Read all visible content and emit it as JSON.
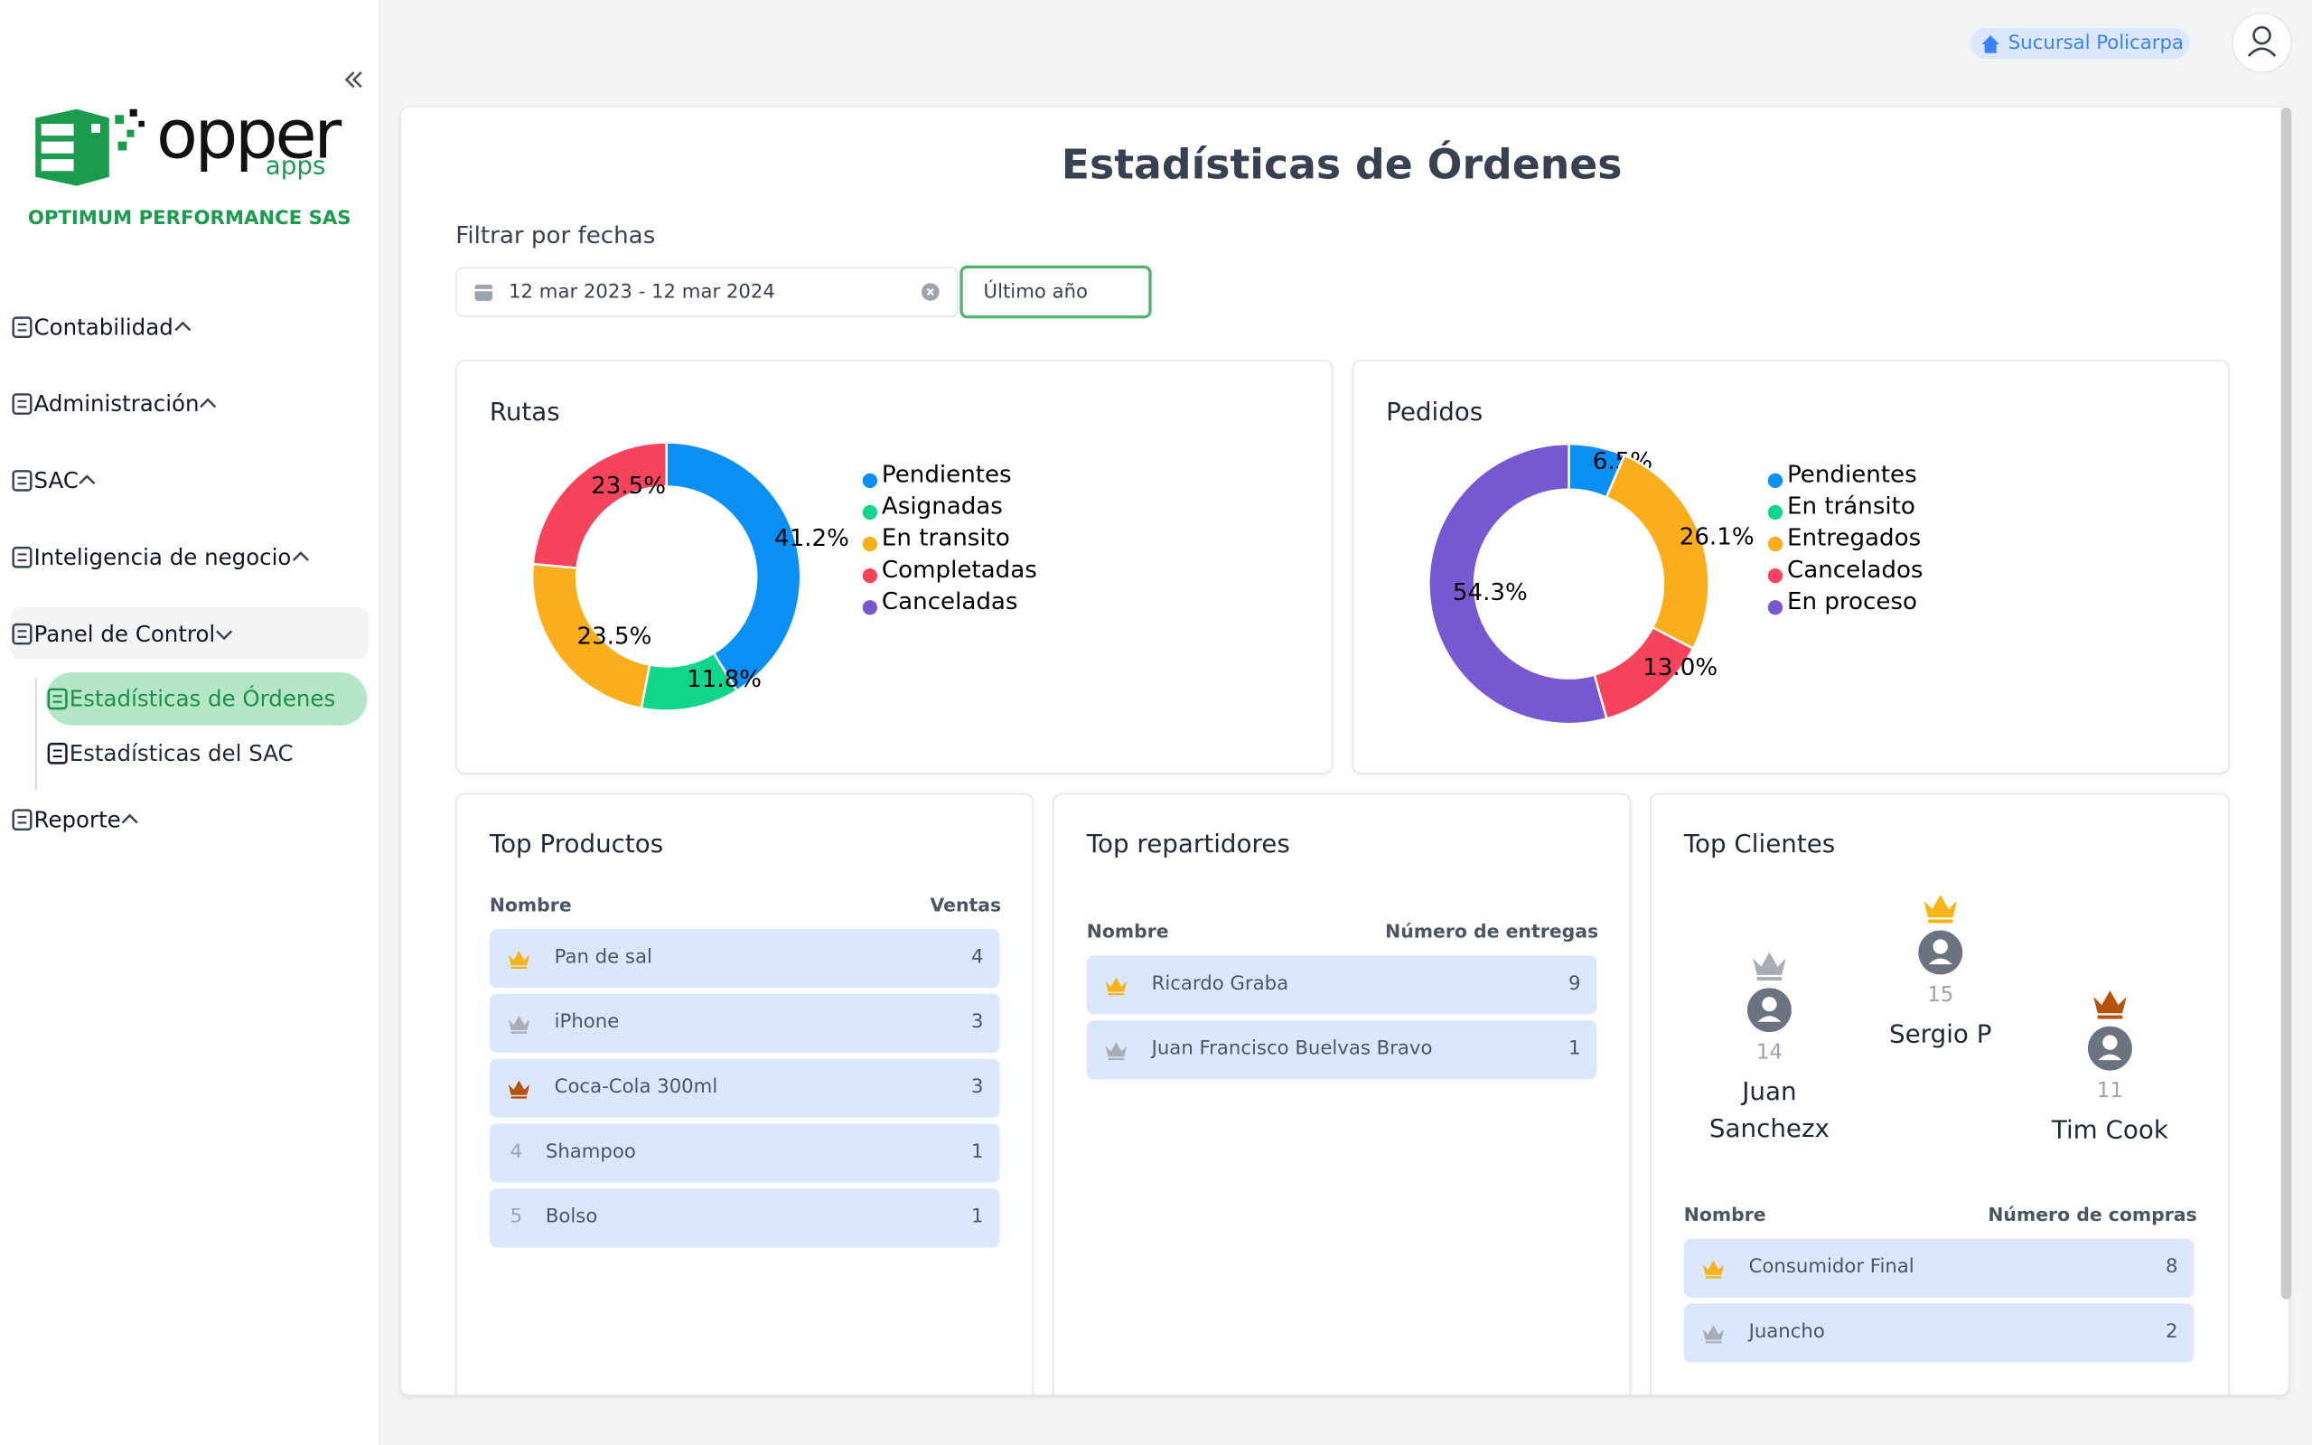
{
  "sidebar": {
    "logo_text": "opper",
    "logo_sub": "apps",
    "company": "OPTIMUM PERFORMANCE SAS",
    "menu": [
      {
        "label": "Contabilidad"
      },
      {
        "label": "Administración"
      },
      {
        "label": "SAC"
      },
      {
        "label": "Inteligencia de negocio"
      },
      {
        "label": "Panel de Control",
        "children": [
          "Estadísticas de Órdenes",
          "Estadísticas del SAC"
        ]
      },
      {
        "label": "Reporte"
      }
    ]
  },
  "header": {
    "branch": "Sucursal Policarpa"
  },
  "page": {
    "title": "Estadísticas de Órdenes",
    "filter_label": "Filtrar por fechas",
    "date_range": "12 mar 2023 - 12 mar 2024",
    "preset": "Último año"
  },
  "chart_data": [
    {
      "type": "pie",
      "title": "Rutas",
      "donut": true,
      "categories": [
        "Pendientes",
        "Asignadas",
        "En transito",
        "Completadas",
        "Canceladas"
      ],
      "values": [
        41.2,
        11.8,
        23.5,
        23.5,
        0
      ],
      "value_labels": [
        "41.2%",
        "11.8%",
        "23.5%",
        "23.5%",
        null
      ],
      "colors": [
        "#0a8ff5",
        "#10d68c",
        "#fbae1c",
        "#f7445d",
        "#7758d0"
      ]
    },
    {
      "type": "pie",
      "title": "Pedidos",
      "donut": true,
      "categories": [
        "Pendientes",
        "En tránsito",
        "Entregados",
        "Cancelados",
        "En proceso"
      ],
      "values": [
        6.5,
        0,
        26.1,
        13.0,
        54.3
      ],
      "value_labels": [
        "6.5%",
        null,
        "26.1%",
        "13.0%",
        "54.3%"
      ],
      "colors": [
        "#0a8ff5",
        "#10d68c",
        "#fbae1c",
        "#f7445d",
        "#7758d0"
      ]
    }
  ],
  "top_products": {
    "title": "Top Productos",
    "columns": [
      "Nombre",
      "Ventas"
    ],
    "rows": [
      {
        "name": "Pan de sal",
        "value": 4
      },
      {
        "name": "iPhone",
        "value": 3
      },
      {
        "name": "Coca-Cola 300ml",
        "value": 3
      },
      {
        "rank": 4,
        "name": "Shampoo",
        "value": 1
      },
      {
        "rank": 5,
        "name": "Bolso",
        "value": 1
      }
    ]
  },
  "top_couriers": {
    "title": "Top repartidores",
    "columns": [
      "Nombre",
      "Número de entregas"
    ],
    "rows": [
      {
        "name": "Ricardo Graba",
        "value": 9
      },
      {
        "name": "Juan Francisco Buelvas Bravo",
        "value": 1
      }
    ]
  },
  "top_clients": {
    "title": "Top Clientes",
    "podium": [
      {
        "name": "Juan Sanchezx",
        "count": 14
      },
      {
        "name": "Sergio P",
        "count": 15
      },
      {
        "name": "Tim Cook",
        "count": 11
      }
    ],
    "columns": [
      "Nombre",
      "Número de compras"
    ],
    "rows": [
      {
        "name": "Consumidor Final",
        "value": 8
      },
      {
        "name": "Juancho",
        "value": 2
      }
    ]
  }
}
